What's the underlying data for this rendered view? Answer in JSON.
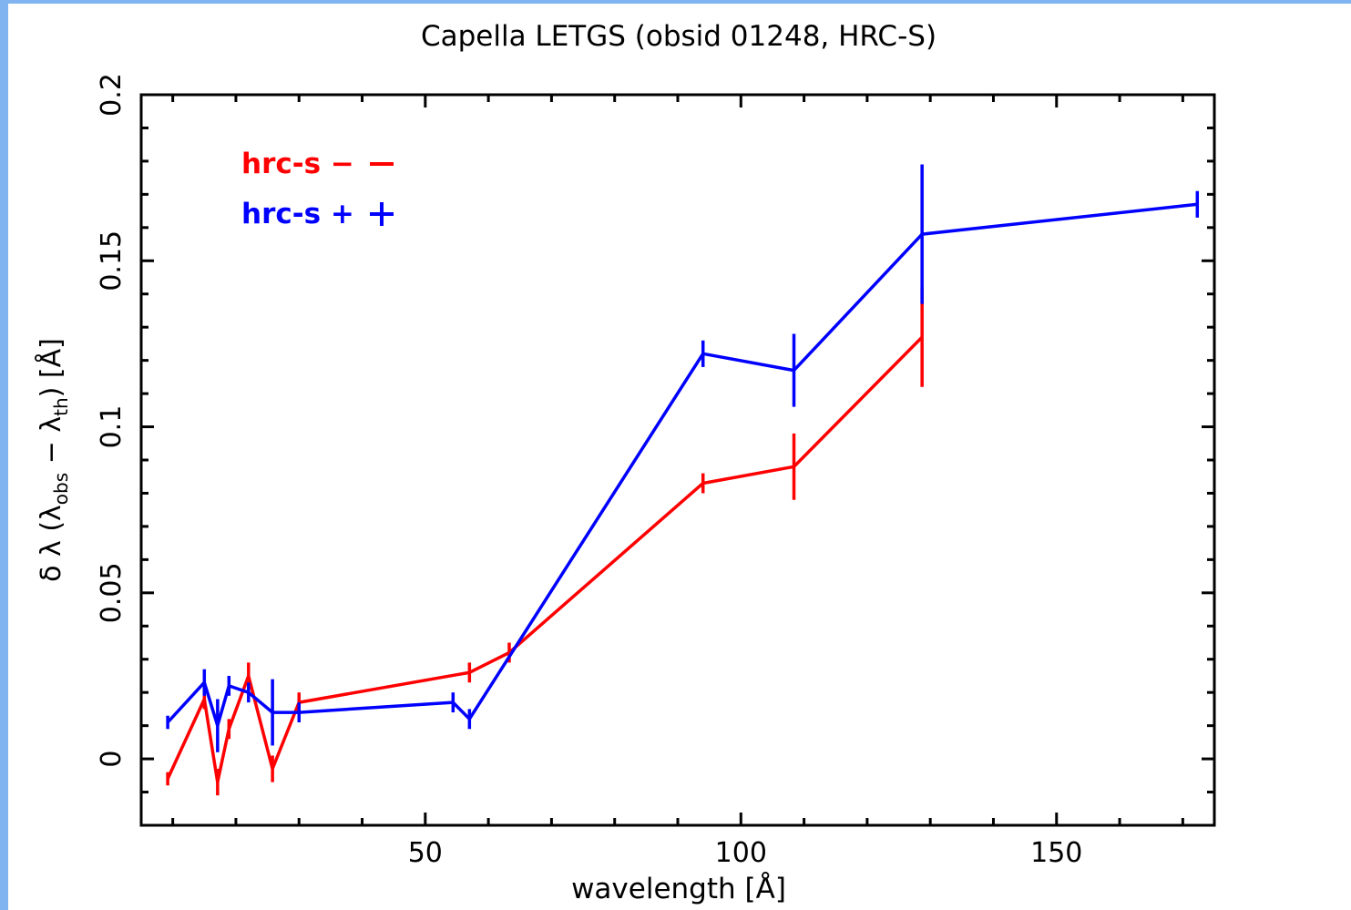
{
  "chart_data": {
    "type": "line",
    "title": "Capella LETGS (obsid 01248, HRC-S)",
    "xlabel": "wavelength [Å]",
    "ylabel": {
      "prefix": "δ λ (λ",
      "sub1": "obs",
      "middle": " − λ",
      "sub2": "th",
      "suffix": ") [Å]"
    },
    "xlim": [
      5,
      175
    ],
    "ylim": [
      -0.02,
      0.2
    ],
    "xticks": [
      {
        "value": 50,
        "label": "50"
      },
      {
        "value": 100,
        "label": "100"
      },
      {
        "value": 150,
        "label": "150"
      }
    ],
    "yticks": [
      {
        "value": 0,
        "label": "0"
      },
      {
        "value": 0.05,
        "label": "0.05"
      },
      {
        "value": 0.1,
        "label": "0.1"
      },
      {
        "value": 0.15,
        "label": "0.15"
      },
      {
        "value": 0.2,
        "label": "0.2"
      }
    ],
    "legend_position": "top-left",
    "series": [
      {
        "name": "hrc-s −",
        "color": "#ff0000",
        "points": [
          {
            "x": 9.2,
            "y": -0.006,
            "err": 0.002
          },
          {
            "x": 15.0,
            "y": 0.018,
            "err": 0.003
          },
          {
            "x": 17.1,
            "y": -0.007,
            "err": 0.004
          },
          {
            "x": 18.9,
            "y": 0.009,
            "err": 0.003
          },
          {
            "x": 22.0,
            "y": 0.025,
            "err": 0.004
          },
          {
            "x": 25.8,
            "y": -0.003,
            "err": 0.004
          },
          {
            "x": 30.0,
            "y": 0.017,
            "err": 0.003
          },
          {
            "x": 57.0,
            "y": 0.026,
            "err": 0.003
          },
          {
            "x": 63.3,
            "y": 0.032,
            "err": 0.003
          },
          {
            "x": 94.0,
            "y": 0.083,
            "err": 0.003
          },
          {
            "x": 108.4,
            "y": 0.088,
            "err": 0.01
          },
          {
            "x": 128.7,
            "y": 0.127,
            "err": 0.015
          }
        ]
      },
      {
        "name": "hrc-s +",
        "color": "#0000ff",
        "points": [
          {
            "x": 9.2,
            "y": 0.011,
            "err": 0.002
          },
          {
            "x": 15.0,
            "y": 0.023,
            "err": 0.004
          },
          {
            "x": 17.1,
            "y": 0.01,
            "err": 0.008
          },
          {
            "x": 18.9,
            "y": 0.022,
            "err": 0.003
          },
          {
            "x": 22.0,
            "y": 0.02,
            "err": 0.003
          },
          {
            "x": 25.8,
            "y": 0.014,
            "err": 0.01
          },
          {
            "x": 30.0,
            "y": 0.014,
            "err": 0.003
          },
          {
            "x": 54.4,
            "y": 0.017,
            "err": 0.003
          },
          {
            "x": 57.0,
            "y": 0.012,
            "err": 0.003
          },
          {
            "x": 94.0,
            "y": 0.122,
            "err": 0.004
          },
          {
            "x": 108.4,
            "y": 0.117,
            "err": 0.011
          },
          {
            "x": 128.7,
            "y": 0.158,
            "err": 0.021
          },
          {
            "x": 172.3,
            "y": 0.167,
            "err": 0.004
          }
        ]
      }
    ]
  }
}
